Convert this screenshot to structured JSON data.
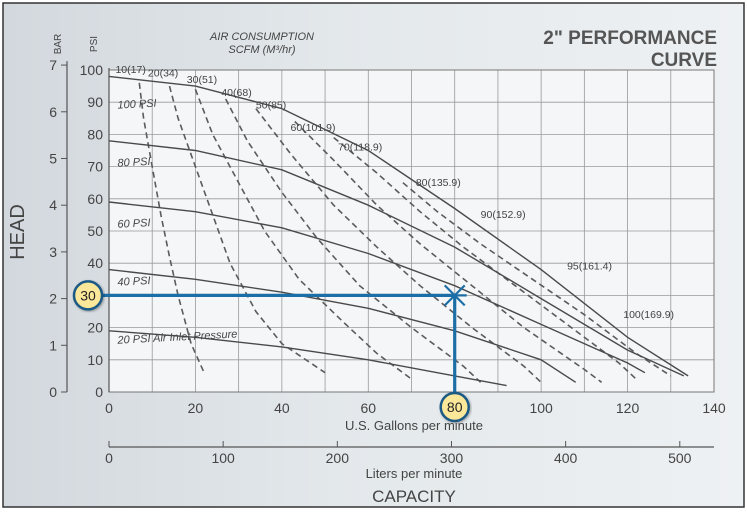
{
  "chart_data": {
    "type": "line",
    "title_line1": "2\" PERFORMANCE",
    "title_line2": "CURVE",
    "air_consumption_label_line1": "AIR CONSUMPTION",
    "air_consumption_label_line2": "SCFM (M³/hr)",
    "ylabel": "HEAD",
    "xlabel": "CAPACITY",
    "x_primary": {
      "label": "U.S. Gallons per minute",
      "range": [
        0,
        140
      ],
      "ticks": [
        0,
        20,
        40,
        60,
        80,
        100,
        120,
        140
      ]
    },
    "x_secondary": {
      "label": "Liters per minute",
      "ticks": [
        0,
        100,
        200,
        300,
        400,
        500
      ]
    },
    "y_psi": {
      "label": "PSI",
      "range": [
        0,
        100
      ],
      "ticks": [
        0,
        10,
        20,
        30,
        40,
        50,
        60,
        70,
        80,
        90,
        100
      ]
    },
    "y_bar": {
      "label": "BAR",
      "ticks": [
        0,
        1,
        2,
        3,
        4,
        5,
        6,
        7
      ]
    },
    "grid": true,
    "pressure_curves": [
      {
        "name": "100 PSI",
        "points": [
          [
            0,
            98
          ],
          [
            20,
            95
          ],
          [
            40,
            88
          ],
          [
            60,
            75
          ],
          [
            80,
            57
          ],
          [
            100,
            38
          ],
          [
            120,
            17
          ],
          [
            134,
            5
          ]
        ]
      },
      {
        "name": "80 PSI",
        "points": [
          [
            0,
            78
          ],
          [
            20,
            75
          ],
          [
            40,
            69
          ],
          [
            60,
            58
          ],
          [
            80,
            45
          ],
          [
            100,
            29
          ],
          [
            120,
            13
          ],
          [
            133,
            5
          ]
        ]
      },
      {
        "name": "60 PSI",
        "points": [
          [
            0,
            59
          ],
          [
            20,
            56
          ],
          [
            40,
            51
          ],
          [
            60,
            43
          ],
          [
            80,
            33
          ],
          [
            100,
            21
          ],
          [
            120,
            9
          ],
          [
            124,
            6
          ]
        ]
      },
      {
        "name": "40 PSI",
        "points": [
          [
            0,
            38
          ],
          [
            20,
            35
          ],
          [
            40,
            31
          ],
          [
            60,
            26
          ],
          [
            80,
            19
          ],
          [
            100,
            10
          ],
          [
            108,
            3
          ]
        ]
      },
      {
        "name": "20 PSI Air Inlet Pressure",
        "points": [
          [
            0,
            19
          ],
          [
            20,
            17
          ],
          [
            40,
            14
          ],
          [
            60,
            10
          ],
          [
            80,
            5
          ],
          [
            92,
            2
          ]
        ]
      }
    ],
    "air_consumption_curves": [
      {
        "name": "10(17)",
        "points": [
          [
            7,
            96
          ],
          [
            8,
            85
          ],
          [
            10,
            70
          ],
          [
            12,
            55
          ],
          [
            14,
            42
          ],
          [
            16,
            30
          ],
          [
            19,
            15
          ],
          [
            22,
            6
          ]
        ]
      },
      {
        "name": "20(34)",
        "points": [
          [
            14,
            95
          ],
          [
            16,
            85
          ],
          [
            20,
            70
          ],
          [
            24,
            55
          ],
          [
            28,
            40
          ],
          [
            34,
            25
          ],
          [
            40,
            15
          ],
          [
            50,
            6
          ]
        ]
      },
      {
        "name": "30(51)",
        "points": [
          [
            20,
            94
          ],
          [
            24,
            80
          ],
          [
            30,
            65
          ],
          [
            36,
            50
          ],
          [
            44,
            35
          ],
          [
            54,
            22
          ],
          [
            62,
            12
          ],
          [
            70,
            4
          ]
        ]
      },
      {
        "name": "40(68)",
        "points": [
          [
            27,
            91
          ],
          [
            32,
            78
          ],
          [
            40,
            62
          ],
          [
            48,
            48
          ],
          [
            58,
            33
          ],
          [
            70,
            20
          ],
          [
            82,
            8
          ],
          [
            86,
            3
          ]
        ]
      },
      {
        "name": "50(85)",
        "points": [
          [
            34,
            88
          ],
          [
            42,
            74
          ],
          [
            52,
            58
          ],
          [
            62,
            45
          ],
          [
            72,
            33
          ],
          [
            84,
            20
          ],
          [
            96,
            8
          ],
          [
            100,
            3
          ]
        ]
      },
      {
        "name": "60(101.9)",
        "points": [
          [
            43,
            84
          ],
          [
            52,
            72
          ],
          [
            62,
            58
          ],
          [
            72,
            46
          ],
          [
            84,
            33
          ],
          [
            96,
            20
          ],
          [
            110,
            7
          ],
          [
            114,
            3
          ]
        ]
      },
      {
        "name": "70(118.9)",
        "points": [
          [
            52,
            79
          ],
          [
            62,
            68
          ],
          [
            72,
            56
          ],
          [
            82,
            45
          ],
          [
            94,
            33
          ],
          [
            106,
            21
          ],
          [
            118,
            9
          ],
          [
            122,
            4
          ]
        ]
      },
      {
        "name": "80(135.9)",
        "points": [
          [
            68,
            65
          ],
          [
            76,
            56
          ],
          [
            86,
            46
          ],
          [
            98,
            35
          ],
          [
            110,
            24
          ],
          [
            122,
            12
          ],
          [
            130,
            5
          ]
        ]
      }
    ],
    "annotation_labels": [
      "90(152.9)",
      "95(161.4)",
      "100(169.9)"
    ],
    "example_reading": {
      "psi": 30,
      "gpm": 80
    }
  }
}
